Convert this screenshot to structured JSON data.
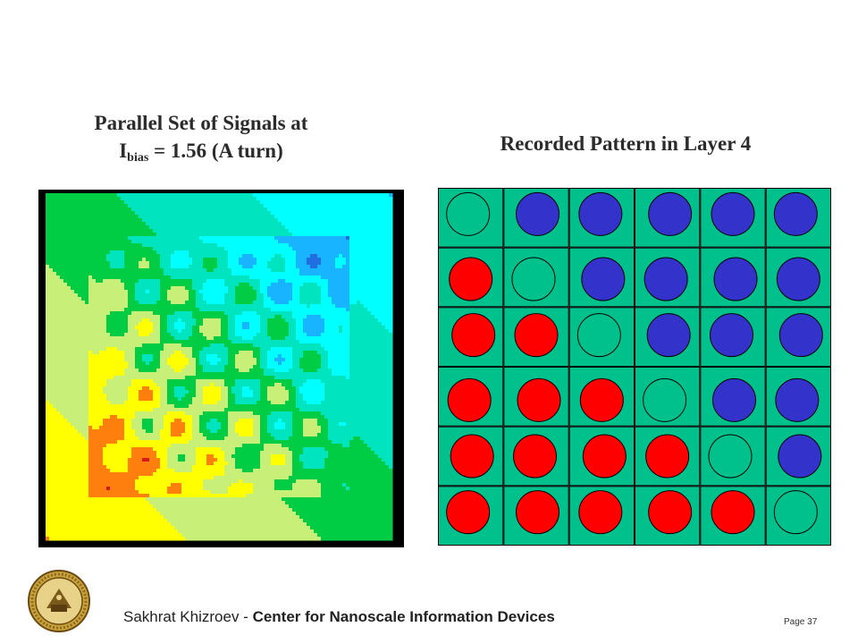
{
  "left_panel": {
    "title_line1": "Parallel Set of Signals at",
    "title_I": "I",
    "title_sub": "bias",
    "title_rest": " = 1.56 (A turn)"
  },
  "right_panel": {
    "title": "Recorded Pattern in Layer 4",
    "pattern": [
      [
        "empty",
        "blue",
        "blue",
        "blue",
        "blue",
        "blue"
      ],
      [
        "red",
        "empty",
        "blue",
        "blue",
        "blue",
        "blue"
      ],
      [
        "red",
        "red",
        "empty",
        "blue",
        "blue",
        "blue"
      ],
      [
        "red",
        "red",
        "red",
        "empty",
        "blue",
        "blue"
      ],
      [
        "red",
        "red",
        "red",
        "red",
        "empty",
        "blue"
      ],
      [
        "red",
        "red",
        "red",
        "red",
        "red",
        "empty"
      ]
    ],
    "colors": {
      "cell_bg": "#00c08c",
      "blue": "#3333cc",
      "red": "#ff0000",
      "empty": "#00c08c"
    }
  },
  "field_map": {
    "colors": [
      "#d7191c",
      "#ff7f0e",
      "#ffff00",
      "#c8f078",
      "#00cc44",
      "#00e5c0",
      "#00ffff",
      "#19b4ff",
      "#1f6fe0"
    ],
    "frame": "#000000"
  },
  "footer": {
    "author": "Sakhrat Khizroev - ",
    "organization": "Center for Nanoscale Information Devices",
    "page": "Page 37"
  },
  "logo": {
    "icon": "university-seal-icon"
  }
}
